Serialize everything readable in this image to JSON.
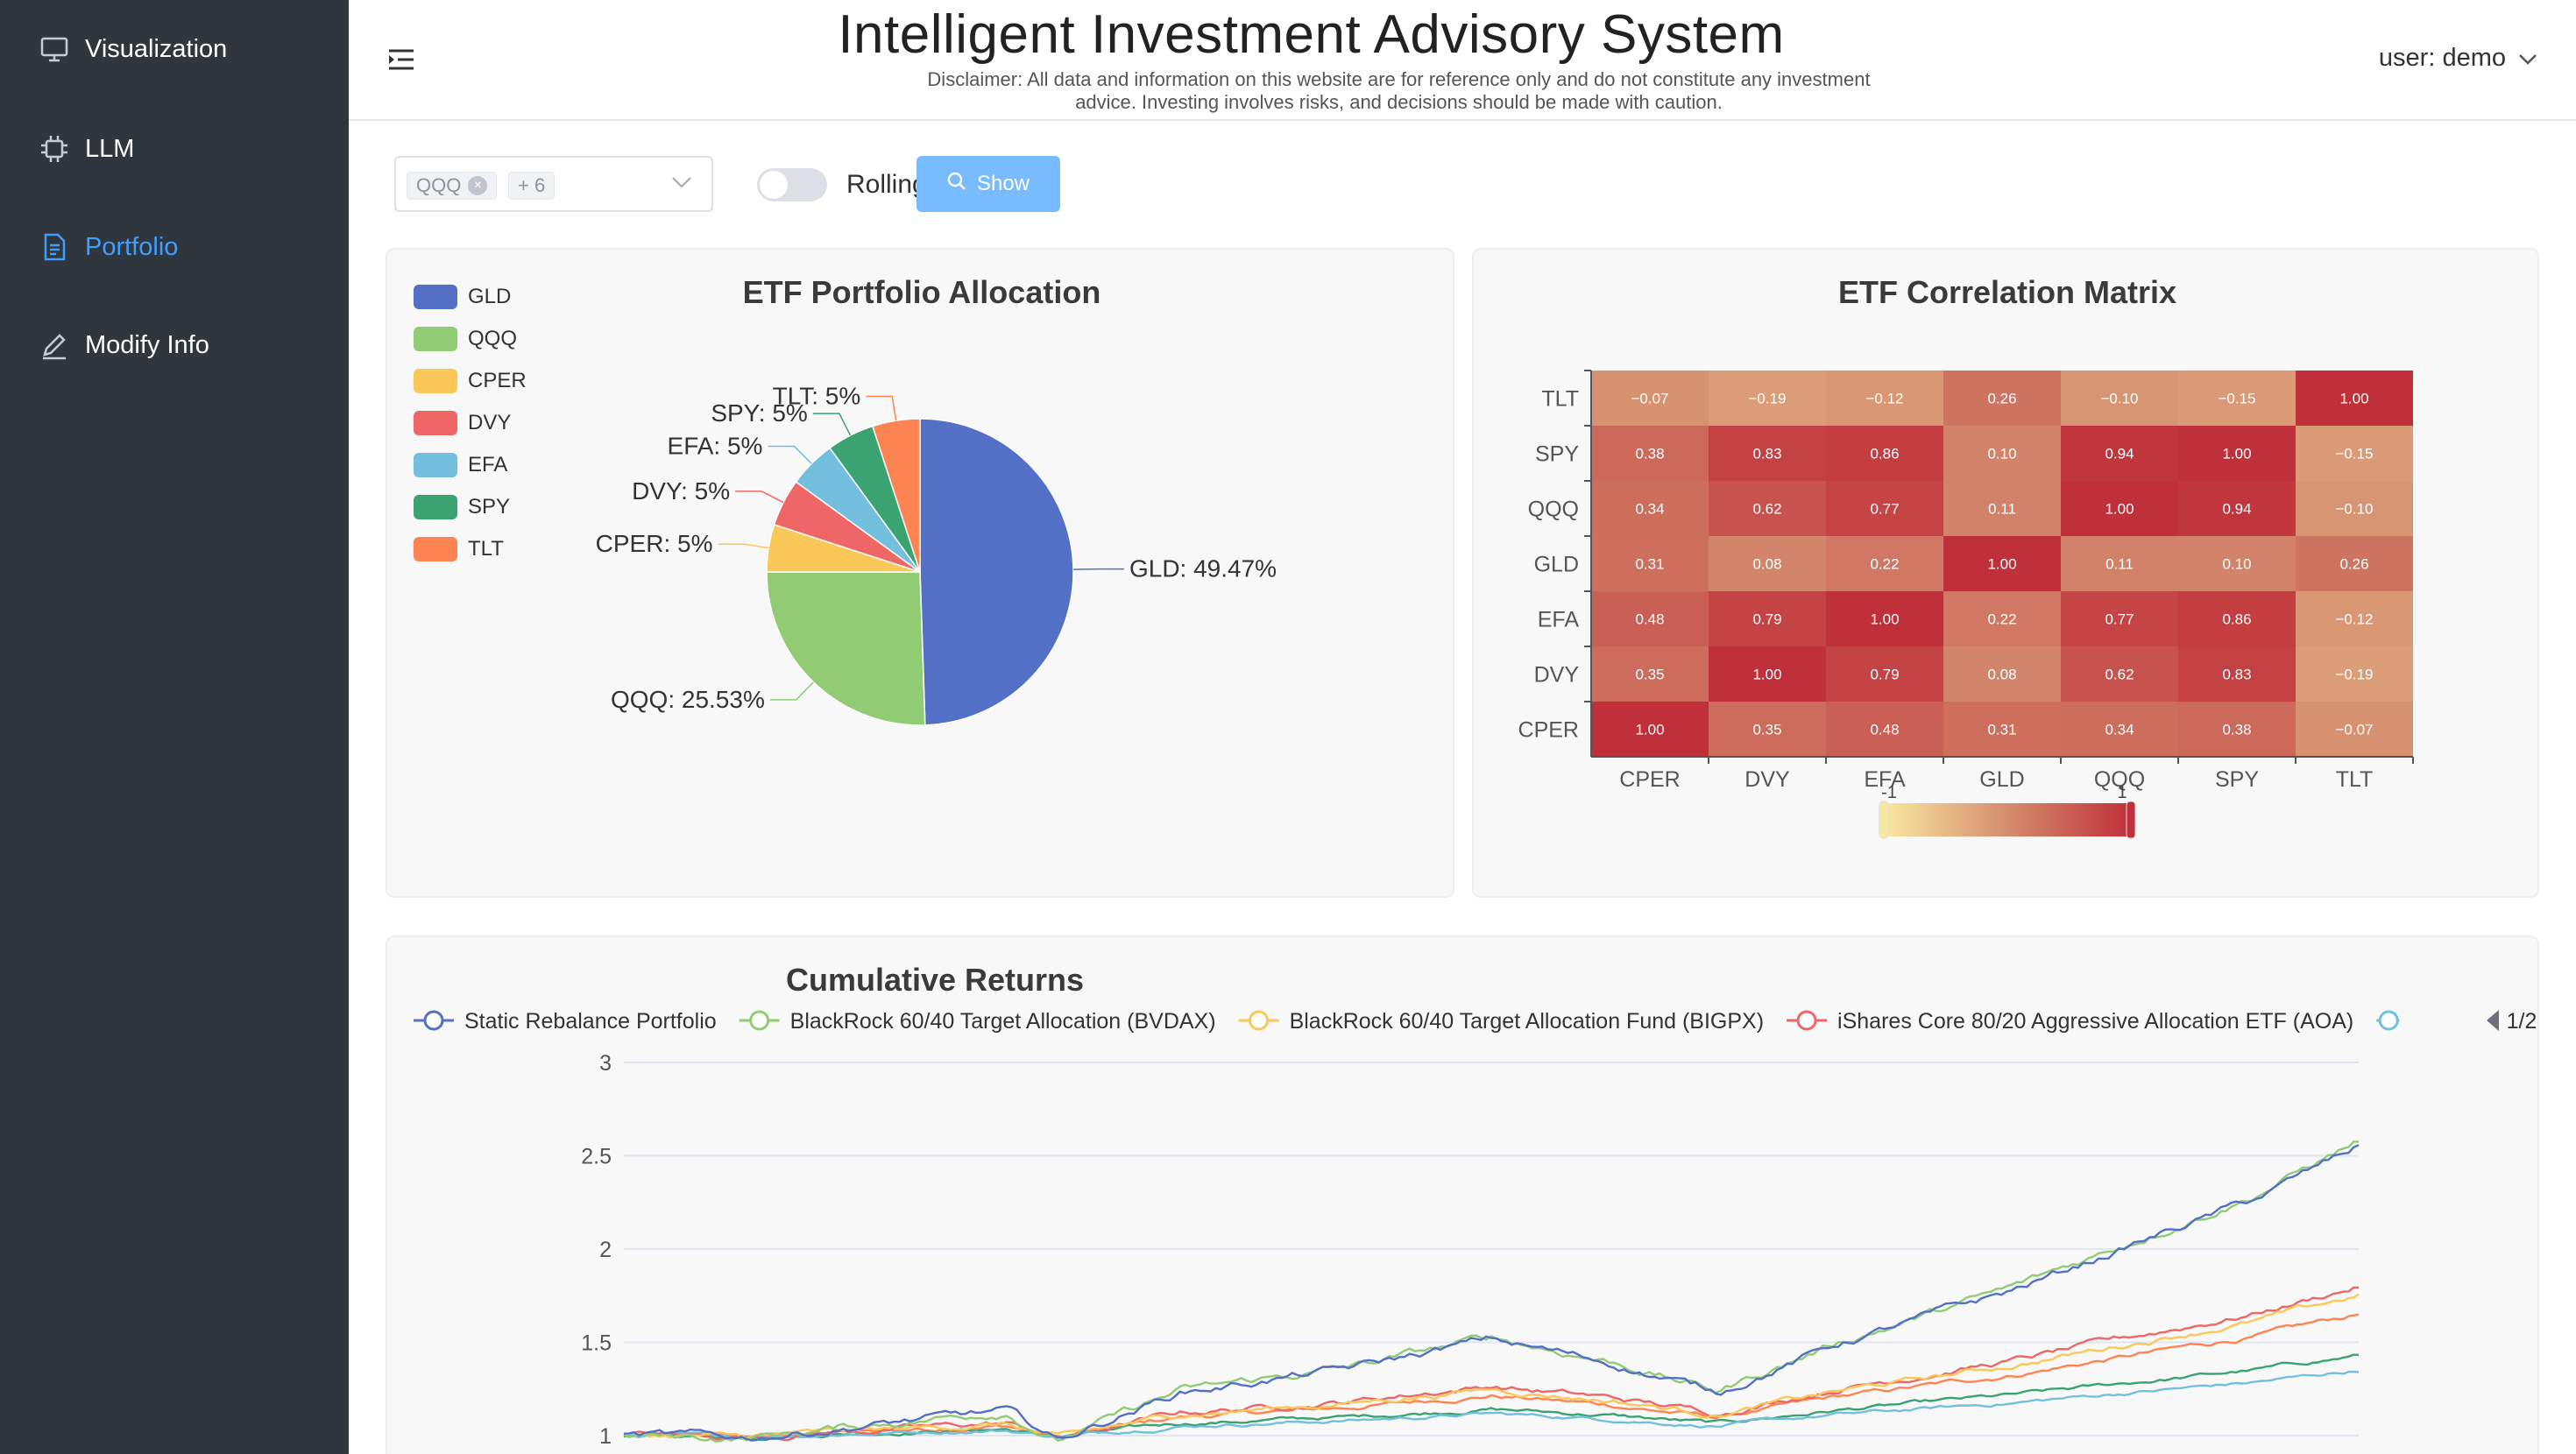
{
  "sidebar": {
    "items": [
      {
        "label": "Visualization",
        "icon": "monitor-icon",
        "active": false
      },
      {
        "label": "LLM",
        "icon": "chip-icon",
        "active": false
      },
      {
        "label": "Portfolio",
        "icon": "document-icon",
        "active": true
      },
      {
        "label": "Modify Info",
        "icon": "edit-icon",
        "active": false
      }
    ]
  },
  "header": {
    "title": "Intelligent Investment Advisory System",
    "disclaimer_line1": "Disclaimer: All data and information on this website are for reference only and do not constitute any investment",
    "disclaimer_line2": "advice. Investing involves risks, and decisions should be made with caution.",
    "user_label": "user: demo"
  },
  "filters": {
    "selected_tag": "QQQ",
    "more_tag": "+ 6",
    "rolling_label": "Rolling",
    "rolling_on": false,
    "show_label": "Show"
  },
  "colors": {
    "GLD": "#5470c6",
    "QQQ": "#91cc75",
    "CPER": "#fac858",
    "DVY": "#ee6666",
    "EFA": "#73c0de",
    "SPY": "#3ba272",
    "TLT": "#fc8452",
    "accent": "#409eff",
    "sidebar_bg": "#30363d"
  },
  "chart_data": [
    {
      "type": "pie",
      "title": "ETF Portfolio Allocation",
      "legend": [
        "GLD",
        "QQQ",
        "CPER",
        "DVY",
        "EFA",
        "SPY",
        "TLT"
      ],
      "slices": [
        {
          "name": "GLD",
          "value": 49.47,
          "label": "GLD: 49.47%"
        },
        {
          "name": "QQQ",
          "value": 25.53,
          "label": "QQQ: 25.53%"
        },
        {
          "name": "CPER",
          "value": 5,
          "label": "CPER: 5%"
        },
        {
          "name": "DVY",
          "value": 5,
          "label": "DVY: 5%"
        },
        {
          "name": "EFA",
          "value": 5,
          "label": "EFA: 5%"
        },
        {
          "name": "SPY",
          "value": 5,
          "label": "SPY: 5%"
        },
        {
          "name": "TLT",
          "value": 5,
          "label": "TLT: 5%"
        }
      ]
    },
    {
      "type": "heatmap",
      "title": "ETF Correlation Matrix",
      "x": [
        "CPER",
        "DVY",
        "EFA",
        "GLD",
        "QQQ",
        "SPY",
        "TLT"
      ],
      "y": [
        "CPER",
        "DVY",
        "EFA",
        "GLD",
        "QQQ",
        "SPY",
        "TLT"
      ],
      "values": [
        [
          "1.00",
          "0.35",
          "0.48",
          "0.31",
          "0.34",
          "0.38",
          "-0.07"
        ],
        [
          "0.35",
          "1.00",
          "0.79",
          "0.08",
          "0.62",
          "0.83",
          "-0.19"
        ],
        [
          "0.48",
          "0.79",
          "1.00",
          "0.22",
          "0.77",
          "0.86",
          "-0.12"
        ],
        [
          "0.31",
          "0.08",
          "0.22",
          "1.00",
          "0.11",
          "0.10",
          "0.26"
        ],
        [
          "0.34",
          "0.62",
          "0.77",
          "0.11",
          "1.00",
          "0.94",
          "-0.10"
        ],
        [
          "0.38",
          "0.83",
          "0.86",
          "0.10",
          "0.94",
          "1.00",
          "-0.15"
        ],
        [
          "-0.07",
          "-0.19",
          "-0.12",
          "0.26",
          "-0.10",
          "-0.15",
          "1.00"
        ]
      ],
      "visual_map": {
        "min_label": "-1",
        "max_label": "1",
        "min": -1,
        "max": 1
      }
    },
    {
      "type": "line",
      "title": "Cumulative Returns",
      "legend_page": "1/2",
      "series": [
        {
          "name": "Static Rebalance Portfolio",
          "color": "#5470c6",
          "end": 2.55,
          "peak": 1.82,
          "vol": 1.0
        },
        {
          "name": "BlackRock 60/40 Target Allocation (BVDAX)",
          "color": "#91cc75",
          "end": 2.58,
          "peak": 1.92,
          "vol": 1.0
        },
        {
          "name": "BlackRock 60/40 Target Allocation Fund (BIGPX)",
          "color": "#fac858",
          "end": 1.75,
          "peak": 1.62,
          "vol": 0.7
        },
        {
          "name": "iShares Core 80/20 Aggressive Allocation ETF (AOA)",
          "color": "#ee6666",
          "end": 1.8,
          "peak": 1.58,
          "vol": 0.75
        },
        {
          "name": "",
          "color": "#73c0de",
          "end": 1.35,
          "peak": 1.3,
          "vol": 0.45
        },
        {
          "name": "",
          "color": "#3ba272",
          "end": 1.43,
          "peak": 1.4,
          "vol": 0.5
        },
        {
          "name": "",
          "color": "#fc8452",
          "end": 1.65,
          "peak": 1.5,
          "vol": 0.6
        }
      ],
      "y_ticks": [
        "3",
        "2.5",
        "2",
        "1.5",
        "1"
      ],
      "ylim": [
        1,
        3
      ]
    }
  ]
}
